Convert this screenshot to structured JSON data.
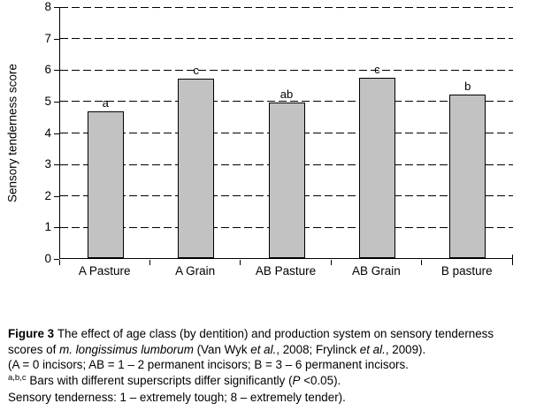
{
  "chart_data": {
    "type": "bar",
    "title": "",
    "categories": [
      "A Pasture",
      "A Grain",
      "AB Pasture",
      "AB Grain",
      "B pasture"
    ],
    "values": [
      4.67,
      5.7,
      4.93,
      5.73,
      5.18
    ],
    "bar_superscripts": [
      "a",
      "c",
      "ab",
      "c",
      "b"
    ],
    "xlabel": "",
    "ylabel": "Sensory tenderness score",
    "ylim": [
      0,
      8
    ],
    "yticks": [
      0,
      1,
      2,
      3,
      4,
      5,
      6,
      7,
      8
    ],
    "grid": "horizontal-dashed",
    "legend": "none",
    "bar_color": "#c2c2c2",
    "bar_border_color": "#000000",
    "axis_color": "#000000"
  },
  "caption": {
    "lines": [
      {
        "segments": [
          {
            "text": "Figure 3 ",
            "bold": true
          },
          {
            "text": "The effect of age class (by dentition) and production system on sensory tenderness"
          }
        ]
      },
      {
        "segments": [
          {
            "text": "scores of "
          },
          {
            "text": "m. longissimus lumborum",
            "italic": true
          },
          {
            "text": " (Van Wyk "
          },
          {
            "text": "et al.",
            "italic": true
          },
          {
            "text": ", 2008; Frylinck "
          },
          {
            "text": "et al.",
            "italic": true
          },
          {
            "text": ", 2009)."
          }
        ]
      },
      {
        "segments": [
          {
            "text": "(A = 0 incisors; AB = 1 – 2 permanent incisors; B = 3 – 6 permanent incisors."
          }
        ]
      },
      {
        "segments": [
          {
            "text": "a,b,c",
            "sup": true
          },
          {
            "text": " Bars with different superscripts differ significantly ("
          },
          {
            "text": "P",
            "italic": true
          },
          {
            "text": " <0.05)."
          }
        ]
      },
      {
        "segments": [
          {
            "text": "Sensory tenderness: 1 – extremely tough; 8 – extremely tender)."
          }
        ]
      }
    ]
  }
}
